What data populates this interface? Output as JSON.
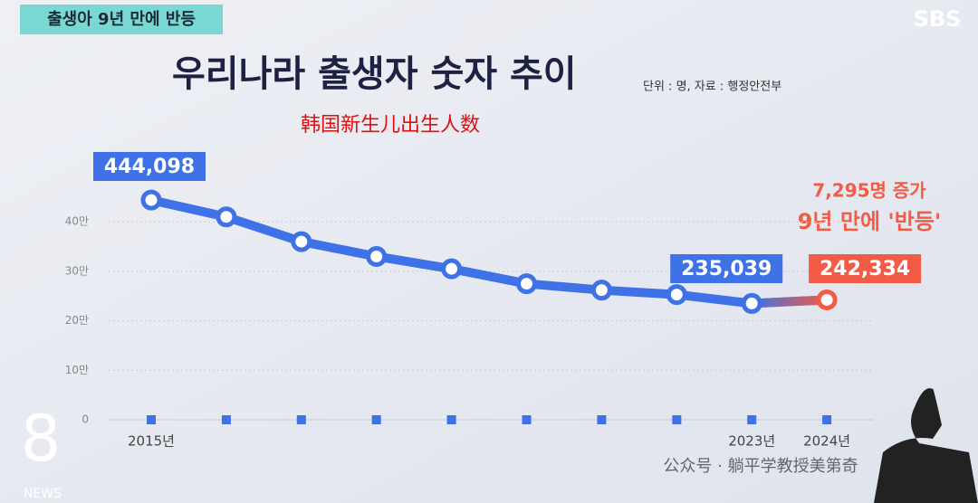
{
  "screen": {
    "tag": "출생아 9년 만에 반등",
    "logo": "SBS",
    "unit_note": "단위 : 명, 자료 : 행정안전부",
    "caption": "韩国新生儿出生人数",
    "annotation": [
      "7,295명 증가",
      "9년 만에 '반등'"
    ],
    "watermark": "公众号 · 躺平学教授美第奇",
    "corner_number": "8",
    "corner_text": "NEWS"
  },
  "chart_data": {
    "type": "line",
    "title": "우리나라 출생자 숫자 추이",
    "categories": [
      "2015년",
      null,
      null,
      null,
      null,
      null,
      null,
      null,
      "2023년",
      "2024년"
    ],
    "values": [
      444098,
      410000,
      360000,
      330000,
      305000,
      275000,
      262000,
      253000,
      235039,
      242334
    ],
    "value_labels": [
      "444,098",
      null,
      null,
      null,
      null,
      null,
      null,
      null,
      "235,039",
      "242,334"
    ],
    "color": "#3f72e6",
    "highlight_color": "#f25b45",
    "ylim": [
      0,
      540000
    ],
    "yticks": [
      0,
      {
        "value": 100000,
        "label": "10만"
      },
      {
        "value": 200000,
        "label": "20만"
      },
      {
        "value": 300000,
        "label": "30만"
      },
      {
        "value": 400000,
        "label": "40만"
      }
    ],
    "grid": true
  }
}
